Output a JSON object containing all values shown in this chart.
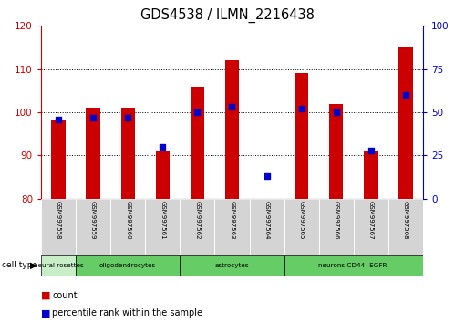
{
  "title": "GDS4538 / ILMN_2216438",
  "samples": [
    "GSM997558",
    "GSM997559",
    "GSM997560",
    "GSM997561",
    "GSM997562",
    "GSM997563",
    "GSM997564",
    "GSM997565",
    "GSM997566",
    "GSM997567",
    "GSM997568"
  ],
  "counts": [
    98,
    101,
    101,
    91,
    106,
    112,
    80,
    109,
    102,
    91,
    115
  ],
  "percentile_ranks": [
    46,
    47,
    47,
    30,
    50,
    53,
    13,
    52,
    50,
    28,
    60
  ],
  "ylim_left": [
    80,
    120
  ],
  "ylim_right": [
    0,
    100
  ],
  "yticks_left": [
    80,
    90,
    100,
    110,
    120
  ],
  "yticks_right": [
    0,
    25,
    50,
    75,
    100
  ],
  "cell_types": [
    {
      "label": "neural rosettes",
      "start": 0,
      "end": 0
    },
    {
      "label": "oligodendrocytes",
      "start": 1,
      "end": 3
    },
    {
      "label": "astrocytes",
      "start": 4,
      "end": 6
    },
    {
      "label": "neurons CD44- EGFR-",
      "start": 7,
      "end": 10
    }
  ],
  "ct_colors": [
    "#c8eec8",
    "#66cc66",
    "#66cc66",
    "#66cc66"
  ],
  "bar_color": "#cc0000",
  "dot_color": "#0000cc",
  "left_tick_color": "#cc0000",
  "right_tick_color": "#0000cc",
  "sample_box_color": "#d4d4d4"
}
